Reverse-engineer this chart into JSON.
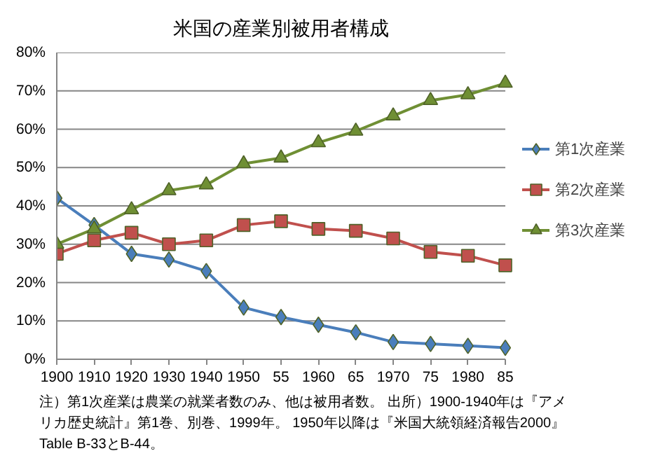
{
  "chart_data": {
    "type": "line",
    "title": "米国の産業別被用者構成",
    "categories": [
      "1900",
      "1910",
      "1920",
      "1930",
      "1940",
      "1950",
      "55",
      "1960",
      "65",
      "1970",
      "75",
      "1980",
      "85"
    ],
    "series": [
      {
        "name": "第1次産業",
        "color": "#4a7ebb",
        "marker": "diamond",
        "values": [
          42,
          35,
          27.5,
          26,
          23,
          13.5,
          11,
          9,
          7,
          4.5,
          4,
          3.5,
          3
        ]
      },
      {
        "name": "第2次産業",
        "color": "#c0504d",
        "marker": "square",
        "values": [
          27.5,
          31,
          33,
          30,
          31,
          35,
          36,
          34,
          33.5,
          31.5,
          28,
          27,
          24.5
        ]
      },
      {
        "name": "第3次産業",
        "color": "#6f8f34",
        "marker": "triangle",
        "values": [
          30,
          34,
          39,
          44,
          45.5,
          51,
          52.5,
          56.5,
          59.5,
          63.5,
          67.5,
          69,
          72
        ]
      }
    ],
    "ylim": [
      0,
      80
    ],
    "yticks": [
      {
        "value": 0,
        "label": "0%"
      },
      {
        "value": 10,
        "label": "10%"
      },
      {
        "value": 20,
        "label": "20%"
      },
      {
        "value": 30,
        "label": "30%"
      },
      {
        "value": 40,
        "label": "40%"
      },
      {
        "value": 50,
        "label": "50%"
      },
      {
        "value": 60,
        "label": "60%"
      },
      {
        "value": 70,
        "label": "70%"
      },
      {
        "value": 80,
        "label": "80%"
      }
    ],
    "grid": "y",
    "legend": "right",
    "line_style": "solid",
    "annotations": [
      "注）第1次産業は農業の就業者数のみ、他は被用者数。 出所）1900-1940年は『アメリカ歴史統計』第1巻、別巻、1999年。 1950年以降は『米国大統領経済報告2000』Table B-33とB-44。"
    ]
  }
}
